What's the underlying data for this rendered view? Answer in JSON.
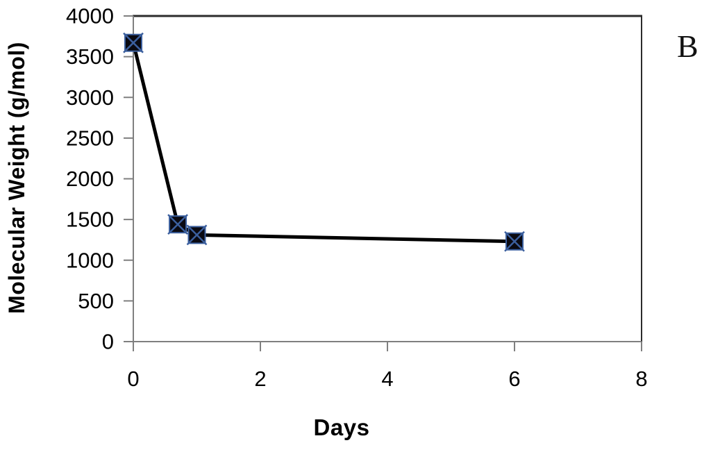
{
  "figure": {
    "background": "#ffffff"
  },
  "annotations": {
    "panel_label": "B"
  },
  "chart_data": {
    "type": "line",
    "title": "",
    "xlabel": "Days",
    "ylabel": "Molecular Weight (g/mol)",
    "x": [
      0,
      0.7,
      1,
      6
    ],
    "y": [
      3670,
      1440,
      1310,
      1230
    ],
    "xlim": [
      0,
      8
    ],
    "ylim": [
      0,
      4000
    ],
    "x_ticks": [
      0,
      2,
      4,
      6,
      8
    ],
    "y_ticks": [
      0,
      500,
      1000,
      1500,
      2000,
      2500,
      3000,
      3500,
      4000
    ],
    "grid": false,
    "legend": false,
    "marker": "filled-square-with-x",
    "line_color": "#000000",
    "line_width": 5,
    "marker_fill": "#0a0a12",
    "marker_accent": "#3b5f9e",
    "axis_color": "#7f7f7f",
    "frame_color": "#2b2b2b",
    "tick_label_size": 31
  }
}
